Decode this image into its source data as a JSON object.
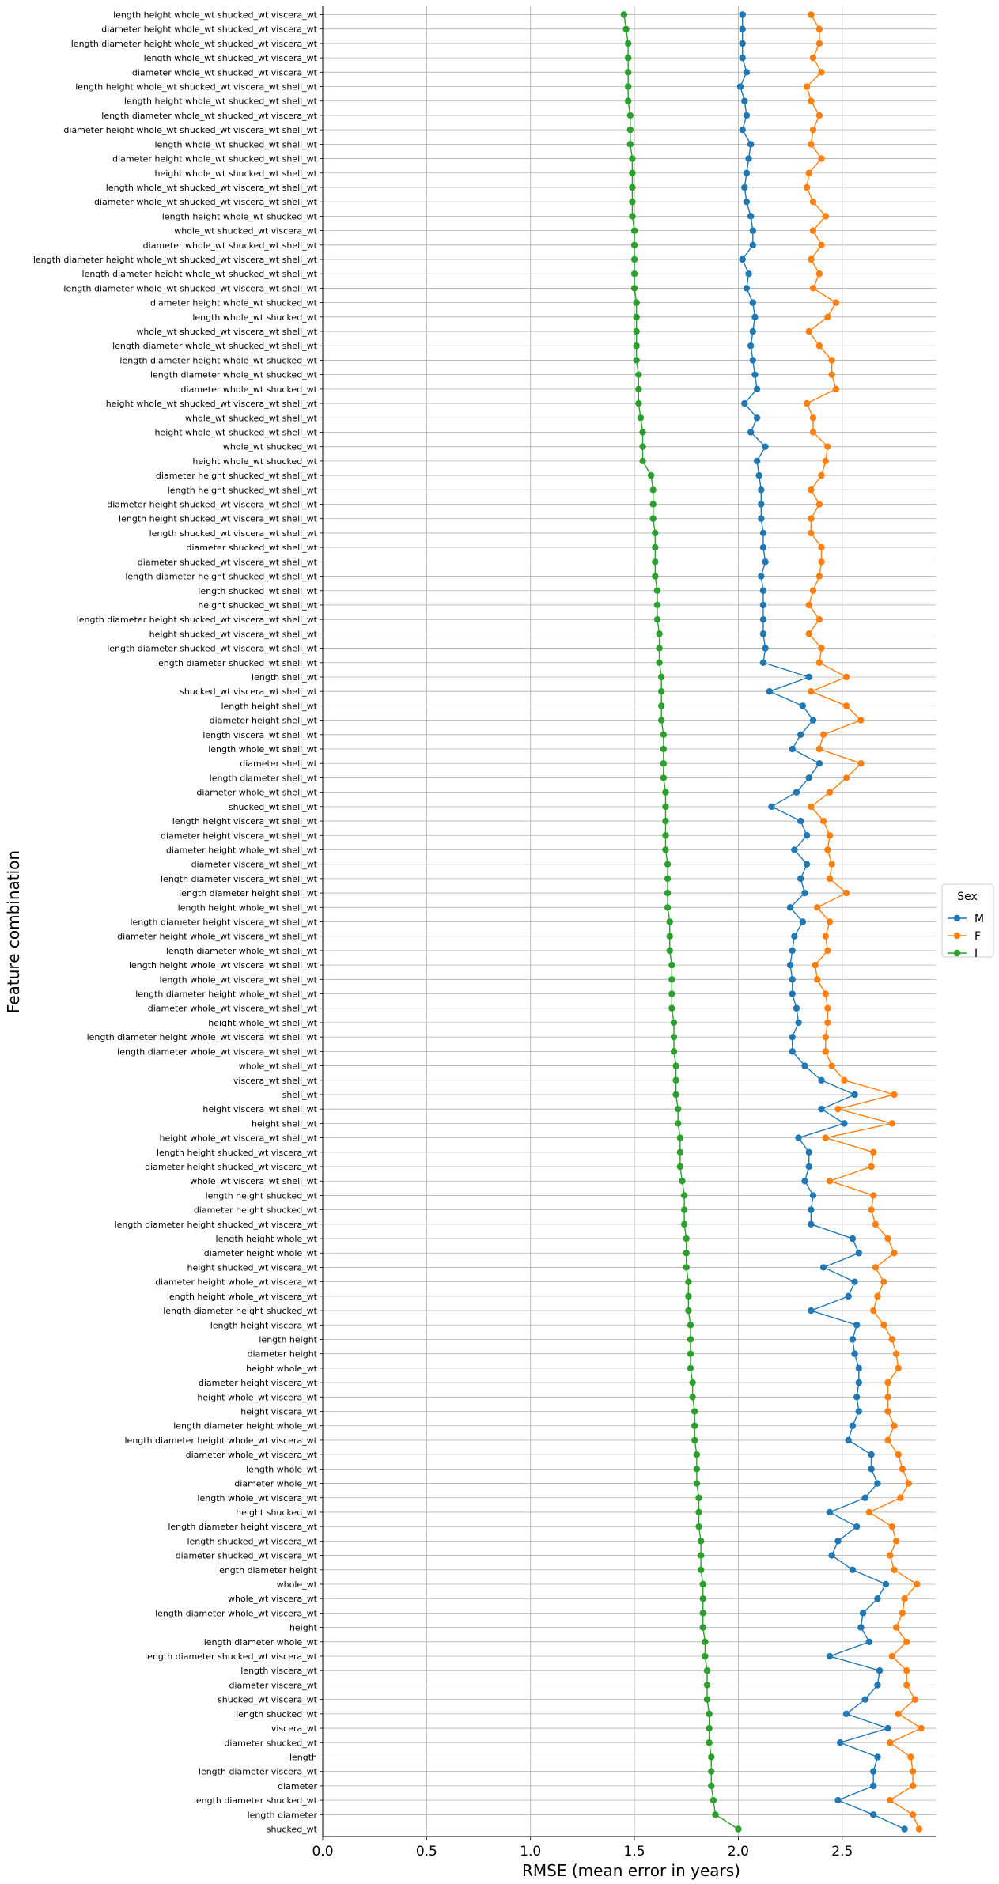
{
  "chart_data": {
    "type": "line",
    "orientation": "horizontal",
    "xlabel": "RMSE (mean error in years)",
    "ylabel": "Feature combination",
    "xlim": [
      0,
      2.95
    ],
    "xticks": [
      0.0,
      0.5,
      1.0,
      1.5,
      2.0,
      2.5
    ],
    "xtick_labels": [
      "0.0",
      "0.5",
      "1.0",
      "1.5",
      "2.0",
      "2.5"
    ],
    "grid": true,
    "legend": {
      "title": "Sex",
      "placement": "right"
    },
    "categories": [
      "length height whole_wt shucked_wt viscera_wt",
      "diameter height whole_wt shucked_wt viscera_wt",
      "length diameter height whole_wt shucked_wt viscera_wt",
      "length whole_wt shucked_wt viscera_wt",
      "diameter whole_wt shucked_wt viscera_wt",
      "length height whole_wt shucked_wt viscera_wt shell_wt",
      "length height whole_wt shucked_wt shell_wt",
      "length diameter whole_wt shucked_wt viscera_wt",
      "diameter height whole_wt shucked_wt viscera_wt shell_wt",
      "length whole_wt shucked_wt shell_wt",
      "diameter height whole_wt shucked_wt shell_wt",
      "height whole_wt shucked_wt shell_wt",
      "length whole_wt shucked_wt viscera_wt shell_wt",
      "diameter whole_wt shucked_wt viscera_wt shell_wt",
      "length height whole_wt shucked_wt",
      "whole_wt shucked_wt viscera_wt",
      "diameter whole_wt shucked_wt shell_wt",
      "length diameter height whole_wt shucked_wt viscera_wt shell_wt",
      "length diameter height whole_wt shucked_wt shell_wt",
      "length diameter whole_wt shucked_wt viscera_wt shell_wt",
      "diameter height whole_wt shucked_wt",
      "length whole_wt shucked_wt",
      "whole_wt shucked_wt viscera_wt shell_wt",
      "length diameter whole_wt shucked_wt shell_wt",
      "length diameter height whole_wt shucked_wt",
      "length diameter whole_wt shucked_wt",
      "diameter whole_wt shucked_wt",
      "height whole_wt shucked_wt viscera_wt shell_wt",
      "whole_wt shucked_wt shell_wt",
      "height whole_wt shucked_wt shell_wt",
      "whole_wt shucked_wt",
      "height whole_wt shucked_wt",
      "diameter height shucked_wt shell_wt",
      "length height shucked_wt shell_wt",
      "diameter height shucked_wt viscera_wt shell_wt",
      "length height shucked_wt viscera_wt shell_wt",
      "length shucked_wt viscera_wt shell_wt",
      "diameter shucked_wt shell_wt",
      "diameter shucked_wt viscera_wt shell_wt",
      "length diameter height shucked_wt shell_wt",
      "length shucked_wt shell_wt",
      "height shucked_wt shell_wt",
      "length diameter height shucked_wt viscera_wt shell_wt",
      "height shucked_wt viscera_wt shell_wt",
      "length diameter shucked_wt viscera_wt shell_wt",
      "length diameter shucked_wt shell_wt",
      "length shell_wt",
      "shucked_wt viscera_wt shell_wt",
      "length height shell_wt",
      "diameter height shell_wt",
      "length viscera_wt shell_wt",
      "length whole_wt shell_wt",
      "diameter shell_wt",
      "length diameter shell_wt",
      "diameter whole_wt shell_wt",
      "shucked_wt shell_wt",
      "length height viscera_wt shell_wt",
      "diameter height viscera_wt shell_wt",
      "diameter height whole_wt shell_wt",
      "diameter viscera_wt shell_wt",
      "length diameter viscera_wt shell_wt",
      "length diameter height shell_wt",
      "length height whole_wt shell_wt",
      "length diameter height viscera_wt shell_wt",
      "diameter height whole_wt viscera_wt shell_wt",
      "length diameter whole_wt shell_wt",
      "length height whole_wt viscera_wt shell_wt",
      "length whole_wt viscera_wt shell_wt",
      "length diameter height whole_wt shell_wt",
      "diameter whole_wt viscera_wt shell_wt",
      "height whole_wt shell_wt",
      "length diameter height whole_wt viscera_wt shell_wt",
      "length diameter whole_wt viscera_wt shell_wt",
      "whole_wt shell_wt",
      "viscera_wt shell_wt",
      "shell_wt",
      "height viscera_wt shell_wt",
      "height shell_wt",
      "height whole_wt viscera_wt shell_wt",
      "length height shucked_wt viscera_wt",
      "diameter height shucked_wt viscera_wt",
      "whole_wt viscera_wt shell_wt",
      "length height shucked_wt",
      "diameter height shucked_wt",
      "length diameter height shucked_wt viscera_wt",
      "length height whole_wt",
      "diameter height whole_wt",
      "height shucked_wt viscera_wt",
      "diameter height whole_wt viscera_wt",
      "length height whole_wt viscera_wt",
      "length diameter height shucked_wt",
      "length height viscera_wt",
      "length height",
      "diameter height",
      "height whole_wt",
      "diameter height viscera_wt",
      "height whole_wt viscera_wt",
      "height viscera_wt",
      "length diameter height whole_wt",
      "length diameter height whole_wt viscera_wt",
      "diameter whole_wt viscera_wt",
      "length whole_wt",
      "diameter whole_wt",
      "length whole_wt viscera_wt",
      "height shucked_wt",
      "length diameter height viscera_wt",
      "length shucked_wt viscera_wt",
      "diameter shucked_wt viscera_wt",
      "length diameter height",
      "whole_wt",
      "whole_wt viscera_wt",
      "length diameter whole_wt viscera_wt",
      "height",
      "length diameter whole_wt",
      "length diameter shucked_wt viscera_wt",
      "length viscera_wt",
      "diameter viscera_wt",
      "shucked_wt viscera_wt",
      "length shucked_wt",
      "viscera_wt",
      "diameter shucked_wt",
      "length",
      "length diameter viscera_wt",
      "diameter",
      "length diameter shucked_wt",
      "length diameter",
      "shucked_wt"
    ],
    "series": [
      {
        "name": "M",
        "color": "#1f77b4",
        "values": [
          2.02,
          2.02,
          2.02,
          2.02,
          2.04,
          2.01,
          2.03,
          2.04,
          2.02,
          2.06,
          2.05,
          2.04,
          2.03,
          2.04,
          2.06,
          2.07,
          2.07,
          2.02,
          2.05,
          2.04,
          2.07,
          2.08,
          2.07,
          2.06,
          2.07,
          2.08,
          2.09,
          2.03,
          2.09,
          2.06,
          2.13,
          2.09,
          2.1,
          2.11,
          2.11,
          2.11,
          2.12,
          2.12,
          2.13,
          2.11,
          2.12,
          2.12,
          2.12,
          2.12,
          2.13,
          2.12,
          2.34,
          2.15,
          2.31,
          2.36,
          2.3,
          2.26,
          2.39,
          2.34,
          2.28,
          2.16,
          2.3,
          2.33,
          2.27,
          2.33,
          2.3,
          2.32,
          2.25,
          2.31,
          2.27,
          2.26,
          2.25,
          2.26,
          2.26,
          2.28,
          2.29,
          2.26,
          2.26,
          2.32,
          2.4,
          2.56,
          2.4,
          2.51,
          2.29,
          2.34,
          2.34,
          2.32,
          2.36,
          2.35,
          2.35,
          2.55,
          2.58,
          2.41,
          2.56,
          2.53,
          2.35,
          2.57,
          2.55,
          2.56,
          2.58,
          2.58,
          2.57,
          2.58,
          2.55,
          2.53,
          2.64,
          2.64,
          2.67,
          2.61,
          2.44,
          2.57,
          2.48,
          2.45,
          2.55,
          2.71,
          2.67,
          2.6,
          2.59,
          2.63,
          2.44,
          2.68,
          2.67,
          2.61,
          2.52,
          2.72,
          2.49,
          2.67,
          2.65,
          2.65,
          2.48,
          2.65,
          2.8
        ]
      },
      {
        "name": "F",
        "color": "#ff7f0e",
        "values": [
          2.35,
          2.39,
          2.39,
          2.36,
          2.4,
          2.33,
          2.35,
          2.39,
          2.36,
          2.35,
          2.4,
          2.34,
          2.33,
          2.36,
          2.42,
          2.36,
          2.4,
          2.35,
          2.39,
          2.36,
          2.47,
          2.43,
          2.34,
          2.39,
          2.45,
          2.45,
          2.47,
          2.33,
          2.36,
          2.36,
          2.43,
          2.42,
          2.4,
          2.35,
          2.39,
          2.35,
          2.35,
          2.4,
          2.4,
          2.39,
          2.36,
          2.34,
          2.39,
          2.34,
          2.4,
          2.39,
          2.52,
          2.35,
          2.52,
          2.59,
          2.41,
          2.39,
          2.59,
          2.52,
          2.44,
          2.35,
          2.41,
          2.44,
          2.43,
          2.45,
          2.44,
          2.52,
          2.38,
          2.44,
          2.42,
          2.43,
          2.37,
          2.38,
          2.42,
          2.43,
          2.43,
          2.42,
          2.42,
          2.45,
          2.51,
          2.75,
          2.48,
          2.74,
          2.42,
          2.65,
          2.64,
          2.44,
          2.65,
          2.64,
          2.66,
          2.72,
          2.75,
          2.66,
          2.7,
          2.67,
          2.65,
          2.7,
          2.74,
          2.76,
          2.77,
          2.72,
          2.72,
          2.72,
          2.75,
          2.72,
          2.77,
          2.79,
          2.82,
          2.78,
          2.63,
          2.74,
          2.76,
          2.73,
          2.75,
          2.86,
          2.8,
          2.79,
          2.76,
          2.81,
          2.74,
          2.81,
          2.81,
          2.85,
          2.77,
          2.88,
          2.73,
          2.83,
          2.84,
          2.84,
          2.73,
          2.84,
          2.87
        ]
      },
      {
        "name": "I",
        "color": "#2ca02c",
        "values": [
          1.45,
          1.46,
          1.47,
          1.47,
          1.47,
          1.47,
          1.47,
          1.48,
          1.48,
          1.48,
          1.49,
          1.49,
          1.49,
          1.49,
          1.49,
          1.5,
          1.5,
          1.5,
          1.5,
          1.5,
          1.51,
          1.51,
          1.51,
          1.51,
          1.51,
          1.52,
          1.52,
          1.52,
          1.53,
          1.54,
          1.54,
          1.54,
          1.58,
          1.59,
          1.59,
          1.59,
          1.6,
          1.6,
          1.6,
          1.6,
          1.61,
          1.61,
          1.61,
          1.62,
          1.62,
          1.62,
          1.63,
          1.63,
          1.63,
          1.63,
          1.64,
          1.64,
          1.64,
          1.64,
          1.65,
          1.65,
          1.65,
          1.65,
          1.65,
          1.66,
          1.66,
          1.66,
          1.66,
          1.67,
          1.67,
          1.67,
          1.68,
          1.68,
          1.68,
          1.68,
          1.69,
          1.69,
          1.69,
          1.7,
          1.7,
          1.7,
          1.71,
          1.71,
          1.72,
          1.72,
          1.72,
          1.73,
          1.74,
          1.74,
          1.74,
          1.75,
          1.75,
          1.75,
          1.76,
          1.76,
          1.76,
          1.77,
          1.77,
          1.77,
          1.77,
          1.78,
          1.78,
          1.79,
          1.79,
          1.79,
          1.8,
          1.8,
          1.8,
          1.81,
          1.81,
          1.81,
          1.82,
          1.82,
          1.82,
          1.83,
          1.83,
          1.83,
          1.83,
          1.84,
          1.84,
          1.85,
          1.85,
          1.85,
          1.86,
          1.86,
          1.86,
          1.87,
          1.87,
          1.87,
          1.88,
          1.89,
          2.0
        ]
      }
    ]
  }
}
